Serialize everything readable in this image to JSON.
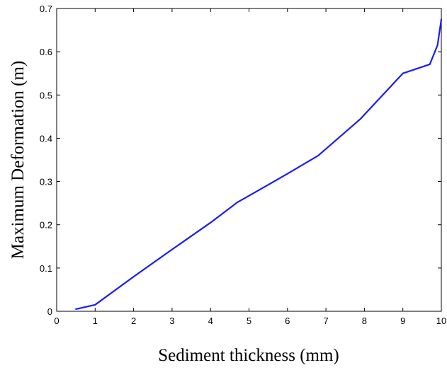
{
  "chart_data": {
    "type": "line",
    "title": "",
    "xlabel": "Sediment thickness (mm)",
    "ylabel": "Maximum Deformation (m)",
    "xlim": [
      0,
      10
    ],
    "ylim": [
      0,
      0.7
    ],
    "xticks": [
      0,
      1,
      2,
      3,
      4,
      5,
      6,
      7,
      8,
      9,
      10
    ],
    "yticks": [
      0,
      0.1,
      0.2,
      0.3,
      0.4,
      0.5,
      0.6,
      0.7
    ],
    "xtick_labels": [
      "0",
      "1",
      "2",
      "3",
      "4",
      "5",
      "6",
      "7",
      "8",
      "9",
      "10"
    ],
    "ytick_labels": [
      "0",
      "0.1",
      "0.2",
      "0.3",
      "0.4",
      "0.5",
      "0.6",
      "0.7"
    ],
    "grid": false,
    "legend": "none",
    "series": [
      {
        "color": "#1a1aff",
        "x": [
          0.5,
          1.0,
          2.0,
          3.0,
          4.0,
          4.7,
          5.0,
          6.0,
          6.8,
          7.9,
          9.0,
          9.7,
          9.9,
          10.0
        ],
        "y": [
          0.005,
          0.015,
          0.08,
          0.143,
          0.205,
          0.252,
          0.267,
          0.318,
          0.36,
          0.445,
          0.55,
          0.571,
          0.615,
          0.675
        ]
      }
    ]
  }
}
